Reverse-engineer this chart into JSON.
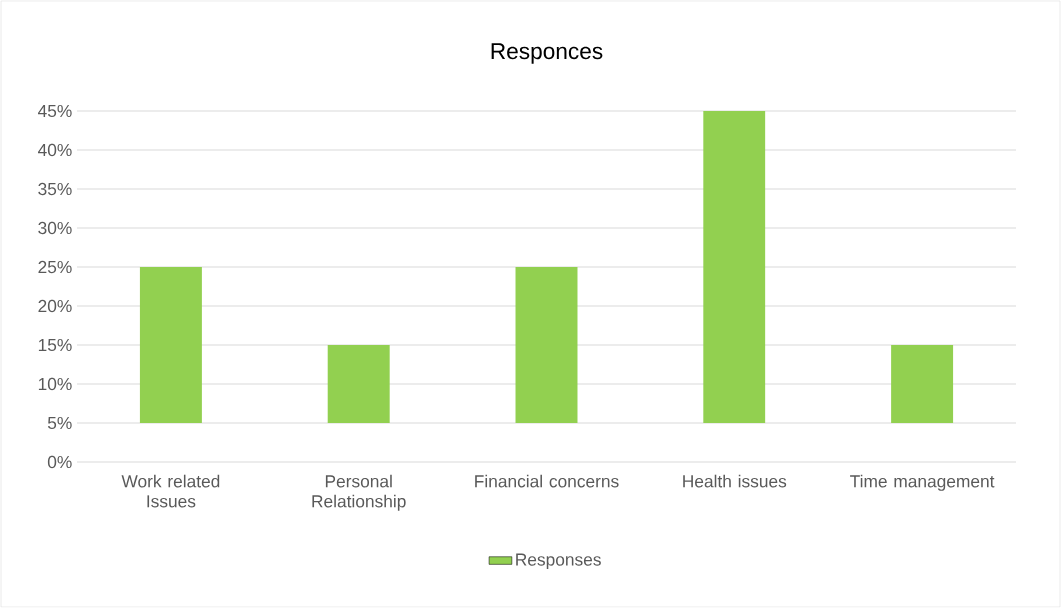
{
  "chart_data": {
    "type": "bar",
    "title": "Responces",
    "categories": [
      "Work related Issues",
      "Personal Relationship",
      "Financial concerns",
      "Health issues",
      "Time management"
    ],
    "series": [
      {
        "name": "Responses",
        "color": "#92d050",
        "values": [
          20,
          10,
          20,
          40,
          10
        ],
        "base": [
          5,
          5,
          5,
          5,
          5
        ]
      }
    ],
    "ylim": [
      0,
      45
    ],
    "yticks": [
      {
        "value": 0,
        "label": "0%"
      },
      {
        "value": 5,
        "label": "5%"
      },
      {
        "value": 10,
        "label": "10%"
      },
      {
        "value": 15,
        "label": "15%"
      },
      {
        "value": 20,
        "label": "20%"
      },
      {
        "value": 25,
        "label": "25%"
      },
      {
        "value": 30,
        "label": "30%"
      },
      {
        "value": 35,
        "label": "35%"
      },
      {
        "value": 40,
        "label": "40%"
      },
      {
        "value": 45,
        "label": "45%"
      }
    ],
    "grid": "y",
    "legend": "bottom"
  }
}
